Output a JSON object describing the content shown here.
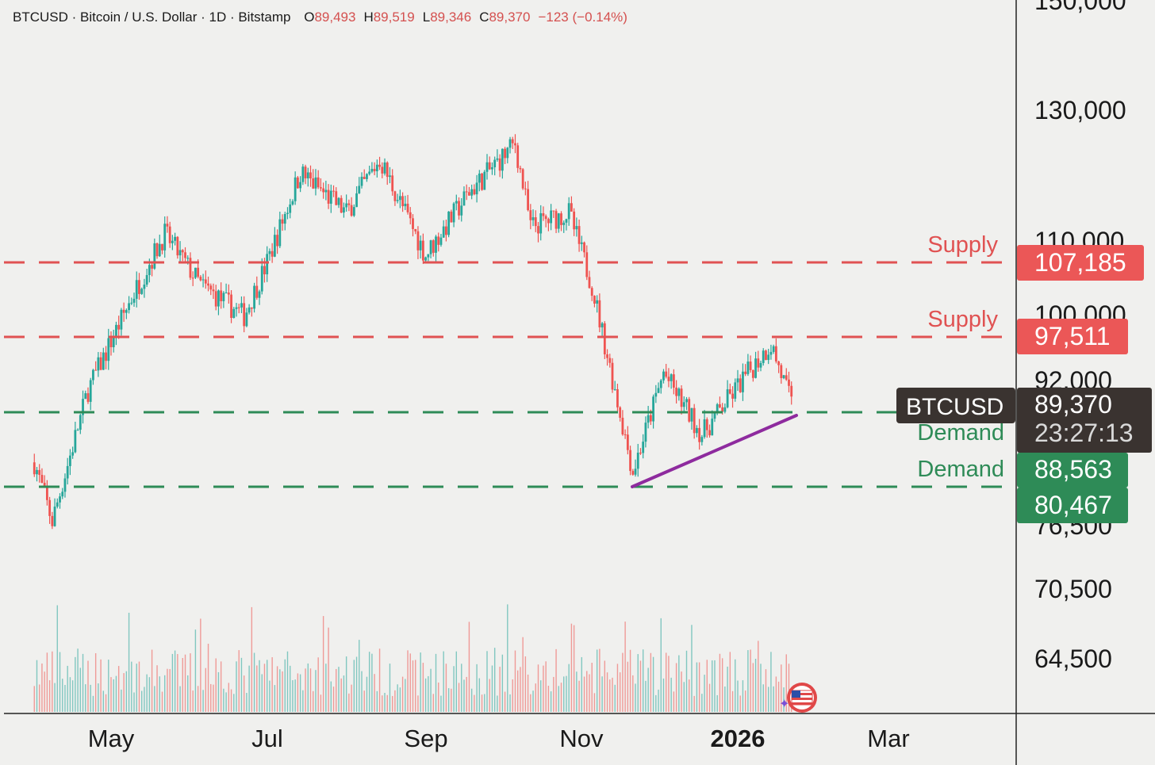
{
  "header": {
    "title": "BTCUSD · Bitcoin / U.S. Dollar · 1D · Bitstamp",
    "o_label": "O",
    "o_value": "89,493",
    "h_label": "H",
    "h_value": "89,519",
    "l_label": "L",
    "l_value": "89,346",
    "c_label": "C",
    "c_value": "89,370",
    "change": "−123 (−0.14%)"
  },
  "price_axis": {
    "ticks": [
      "150,000",
      "130,000",
      "110,000",
      "100,000",
      "92,000",
      "76,500",
      "70,500",
      "64,500"
    ]
  },
  "time_axis": {
    "ticks": [
      "May",
      "Jul",
      "Sep",
      "Nov",
      "2026",
      "Mar"
    ]
  },
  "colors": {
    "up": "#26a69a",
    "down": "#ef5350",
    "supply": "#e05252",
    "demand": "#2e8b57",
    "trendline": "#8e2b9e",
    "background": "#f0f0ee"
  },
  "levels": [
    {
      "type": "supply",
      "label": "Supply",
      "badge": "107,185",
      "value": 107185
    },
    {
      "type": "supply",
      "label": "Supply",
      "badge": "97,511",
      "value": 97511
    },
    {
      "type": "demand",
      "label": "Demand",
      "badge": "88,563",
      "value": 88563
    },
    {
      "type": "demand",
      "label": "Demand",
      "badge": "80,467",
      "value": 80467
    }
  ],
  "current": {
    "symbol": "BTCUSD",
    "price": "89,370",
    "countdown": "23:27:13"
  },
  "chart_data": {
    "type": "candlestick",
    "title": "BTCUSD · Bitcoin / U.S. Dollar · 1D · Bitstamp",
    "x_ticks": [
      "May",
      "Jul",
      "Sep",
      "Nov",
      "2026",
      "Mar"
    ],
    "y_ticks": [
      150000,
      130000,
      110000,
      100000,
      92000,
      76500,
      70500,
      64500
    ],
    "y_scale": "log",
    "y_range": [
      64500,
      150000
    ],
    "closing_path": {
      "description_points": [
        {
          "date": "2025-04-01",
          "close": 83000
        },
        {
          "date": "2025-04-08",
          "close": 77000
        },
        {
          "date": "2025-04-22",
          "close": 91000
        },
        {
          "date": "2025-05-10",
          "close": 103000
        },
        {
          "date": "2025-05-22",
          "close": 111000
        },
        {
          "date": "2025-06-05",
          "close": 104000
        },
        {
          "date": "2025-06-22",
          "close": 100000
        },
        {
          "date": "2025-07-01",
          "close": 107000
        },
        {
          "date": "2025-07-14",
          "close": 120000
        },
        {
          "date": "2025-08-01",
          "close": 114000
        },
        {
          "date": "2025-08-14",
          "close": 122000
        },
        {
          "date": "2025-09-01",
          "close": 108000
        },
        {
          "date": "2025-09-18",
          "close": 117000
        },
        {
          "date": "2025-10-06",
          "close": 124500
        },
        {
          "date": "2025-10-12",
          "close": 112000
        },
        {
          "date": "2025-10-27",
          "close": 114000
        },
        {
          "date": "2025-11-05",
          "close": 104000
        },
        {
          "date": "2025-11-21",
          "close": 82000
        },
        {
          "date": "2025-12-03",
          "close": 93000
        },
        {
          "date": "2025-12-18",
          "close": 86000
        },
        {
          "date": "2026-01-05",
          "close": 93000
        },
        {
          "date": "2026-01-14",
          "close": 96500
        },
        {
          "date": "2026-01-22",
          "close": 89370
        }
      ]
    },
    "trendline": {
      "from": {
        "date": "2025-11-21",
        "value": 80467
      },
      "to": {
        "date": "2026-01-23",
        "value": 88300
      }
    }
  }
}
